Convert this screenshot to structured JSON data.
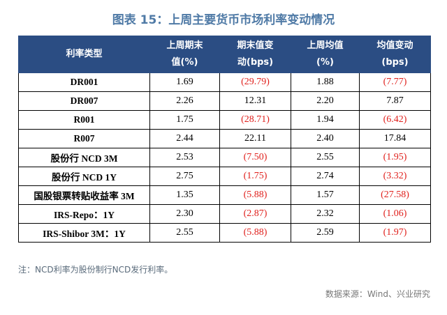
{
  "title": "图表 15：上周主要货币市场利率变动情况",
  "table": {
    "headers": [
      {
        "line1": "利率类型",
        "line2": ""
      },
      {
        "line1": "上周期末",
        "line2": "值(%)"
      },
      {
        "line1": "期末值变",
        "line2": "动(bps)"
      },
      {
        "line1": "上周均值",
        "line2": "(%)"
      },
      {
        "line1": "均值变动",
        "line2": "(bps)"
      }
    ],
    "rows": [
      {
        "name": "DR001",
        "end": "1.69",
        "end_chg": "(29.79)",
        "avg": "1.88",
        "avg_chg": "(7.77)"
      },
      {
        "name": "DR007",
        "end": "2.26",
        "end_chg": "12.31",
        "avg": "2.20",
        "avg_chg": "7.87"
      },
      {
        "name": "R001",
        "end": "1.75",
        "end_chg": "(28.71)",
        "avg": "1.94",
        "avg_chg": "(6.42)"
      },
      {
        "name": "R007",
        "end": "2.44",
        "end_chg": "22.11",
        "avg": "2.40",
        "avg_chg": "17.84"
      },
      {
        "name": "股份行 NCD 3M",
        "end": "2.53",
        "end_chg": "(7.50)",
        "avg": "2.55",
        "avg_chg": "(1.95)"
      },
      {
        "name": "股份行 NCD 1Y",
        "end": "2.75",
        "end_chg": "(1.75)",
        "avg": "2.74",
        "avg_chg": "(3.32)"
      },
      {
        "name": "国股银票转贴收益率 3M",
        "end": "1.35",
        "end_chg": "(5.88)",
        "avg": "1.57",
        "avg_chg": "(27.58)"
      },
      {
        "name": "IRS-Repo：1Y",
        "end": "2.30",
        "end_chg": "(2.87)",
        "avg": "2.32",
        "avg_chg": "(1.06)"
      },
      {
        "name": "IRS-Shibor 3M：1Y",
        "end": "2.55",
        "end_chg": "(5.88)",
        "avg": "2.59",
        "avg_chg": "(1.97)"
      }
    ]
  },
  "colors": {
    "header_bg": "#2b4d83",
    "title": "#4f7aa6",
    "negative": "#e0201c"
  },
  "note": "注：NCD利率为股份制行NCD发行利率。",
  "source": "数据来源：Wind、兴业研究"
}
